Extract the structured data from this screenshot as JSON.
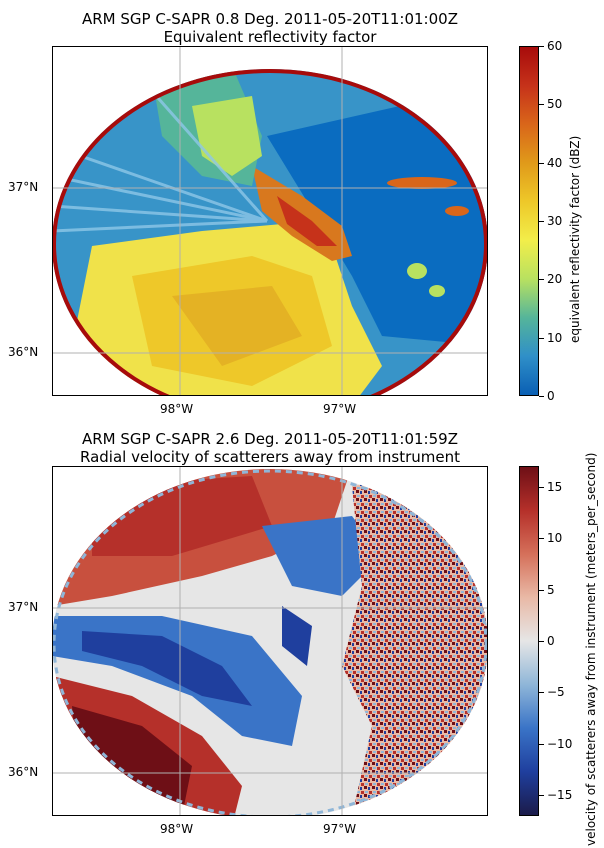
{
  "panels": [
    {
      "title_line1": "ARM SGP C-SAPR 0.8 Deg. 2011-05-20T11:01:00Z",
      "title_line2": "Equivalent reflectivity factor",
      "colorbar_label": "equivalent reflectivity factor (dBZ)",
      "colorbar_ticks": [
        "0",
        "10",
        "20",
        "30",
        "40",
        "50",
        "60"
      ],
      "colorbar_range": [
        0,
        60
      ],
      "colormap": [
        "#0a5fb4",
        "#2f8fc8",
        "#55b59a",
        "#b8e160",
        "#f2ee4a",
        "#eec829",
        "#e09a1a",
        "#d9661a",
        "#c6321a",
        "#a70b0b"
      ],
      "lat_labels": [
        "37°N",
        "36°N"
      ],
      "lon_labels": [
        "98°W",
        "97°W"
      ]
    },
    {
      "title_line1": "ARM SGP C-SAPR 2.6 Deg. 2011-05-20T11:01:59Z",
      "title_line2": "Radial velocity of scatterers away from instrument",
      "colorbar_label": "velocity of scatterers away from instrument (meters_per_second)",
      "colorbar_ticks": [
        "15",
        "10",
        "5",
        "0",
        "−5",
        "−10",
        "−15"
      ],
      "colorbar_range": [
        -17,
        17
      ],
      "colormap": [
        "#1b1b4a",
        "#1f3f9e",
        "#3a74c7",
        "#8fb6d8",
        "#e6e6e6",
        "#e9b9a6",
        "#d5705a",
        "#b5302a",
        "#6e0f16"
      ],
      "lat_labels": [
        "37°N",
        "36°N"
      ],
      "lon_labels": [
        "98°W",
        "97°W"
      ]
    }
  ]
}
